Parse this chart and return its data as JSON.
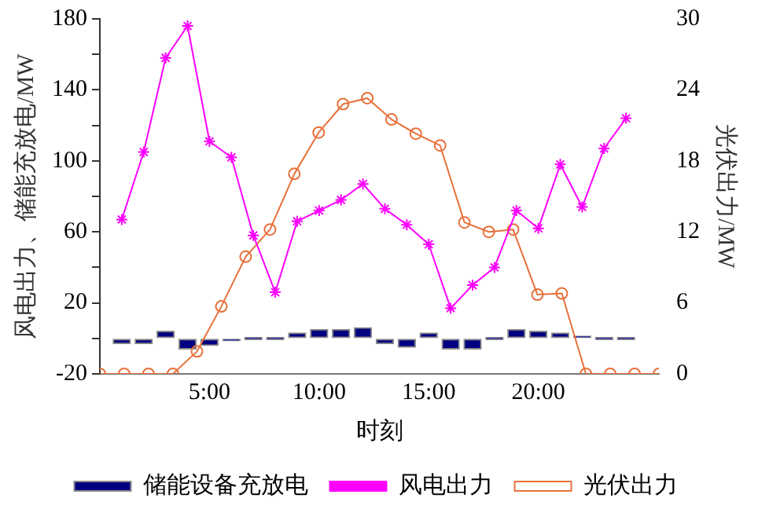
{
  "chart_data": {
    "type": "bar",
    "xlabel": "时刻",
    "ylabel": "风电出力、储能充放电/MW",
    "y2label": "光伏出力/MW",
    "xlim": [
      0,
      25.5
    ],
    "xticks": [
      {
        "value": 5,
        "label": "5:00"
      },
      {
        "value": 10,
        "label": "10:00"
      },
      {
        "value": 15,
        "label": "15:00"
      },
      {
        "value": 20,
        "label": "20:00"
      }
    ],
    "ylim": [
      -20,
      180
    ],
    "yticks": [
      -20,
      {
        "value": 0,
        "label": null
      },
      20,
      {
        "value": 40,
        "label": null
      },
      60,
      {
        "value": 80,
        "label": null
      },
      100,
      {
        "value": 120,
        "label": null
      },
      140,
      {
        "value": 160,
        "label": null
      },
      180
    ],
    "y2lim": [
      0,
      30
    ],
    "y2ticks": [
      0,
      6,
      12,
      18,
      24,
      30
    ],
    "x": [
      1,
      2,
      3,
      4,
      5,
      6,
      7,
      8,
      9,
      10,
      11,
      12,
      13,
      14,
      15,
      16,
      17,
      18,
      19,
      20,
      21,
      22,
      23,
      24
    ],
    "series": [
      {
        "name": "储能设备充放电",
        "color": "#000080",
        "values": [
          -3,
          -3,
          4,
          -6,
          -4,
          -1,
          0,
          0,
          3,
          5,
          5,
          6,
          -3,
          -5,
          3,
          -6,
          -6,
          0,
          5,
          4,
          3,
          1,
          0,
          0
        ]
      },
      {
        "type": "line",
        "name": "风电出力",
        "color": "#ff00ff",
        "marker": "cross",
        "values": [
          67,
          105,
          158,
          176,
          111,
          102,
          58,
          26,
          66,
          72,
          78,
          87,
          73,
          64,
          53,
          17,
          30,
          40,
          72,
          62,
          98,
          74,
          107,
          124
        ]
      },
      {
        "type": "line",
        "name": "光伏出力",
        "color": "#e8703a",
        "marker": "circle",
        "axis": "y2",
        "x": [
          0,
          1.11,
          2.22,
          3.33,
          4.43,
          5.54,
          6.65,
          7.76,
          8.87,
          9.98,
          11.09,
          12.2,
          13.3,
          14.41,
          15.52,
          16.63,
          17.74,
          18.85,
          19.96,
          21.07,
          22.17,
          23.28,
          24.39,
          25.5
        ],
        "values": [
          0,
          0,
          0,
          0,
          1.9,
          5.7,
          9.9,
          12.2,
          16.9,
          20.4,
          22.8,
          23.3,
          21.5,
          20.3,
          19.3,
          12.8,
          12.0,
          12.2,
          6.7,
          6.8,
          0,
          0,
          0,
          0
        ]
      }
    ],
    "legend": "bottom",
    "grid": false
  }
}
